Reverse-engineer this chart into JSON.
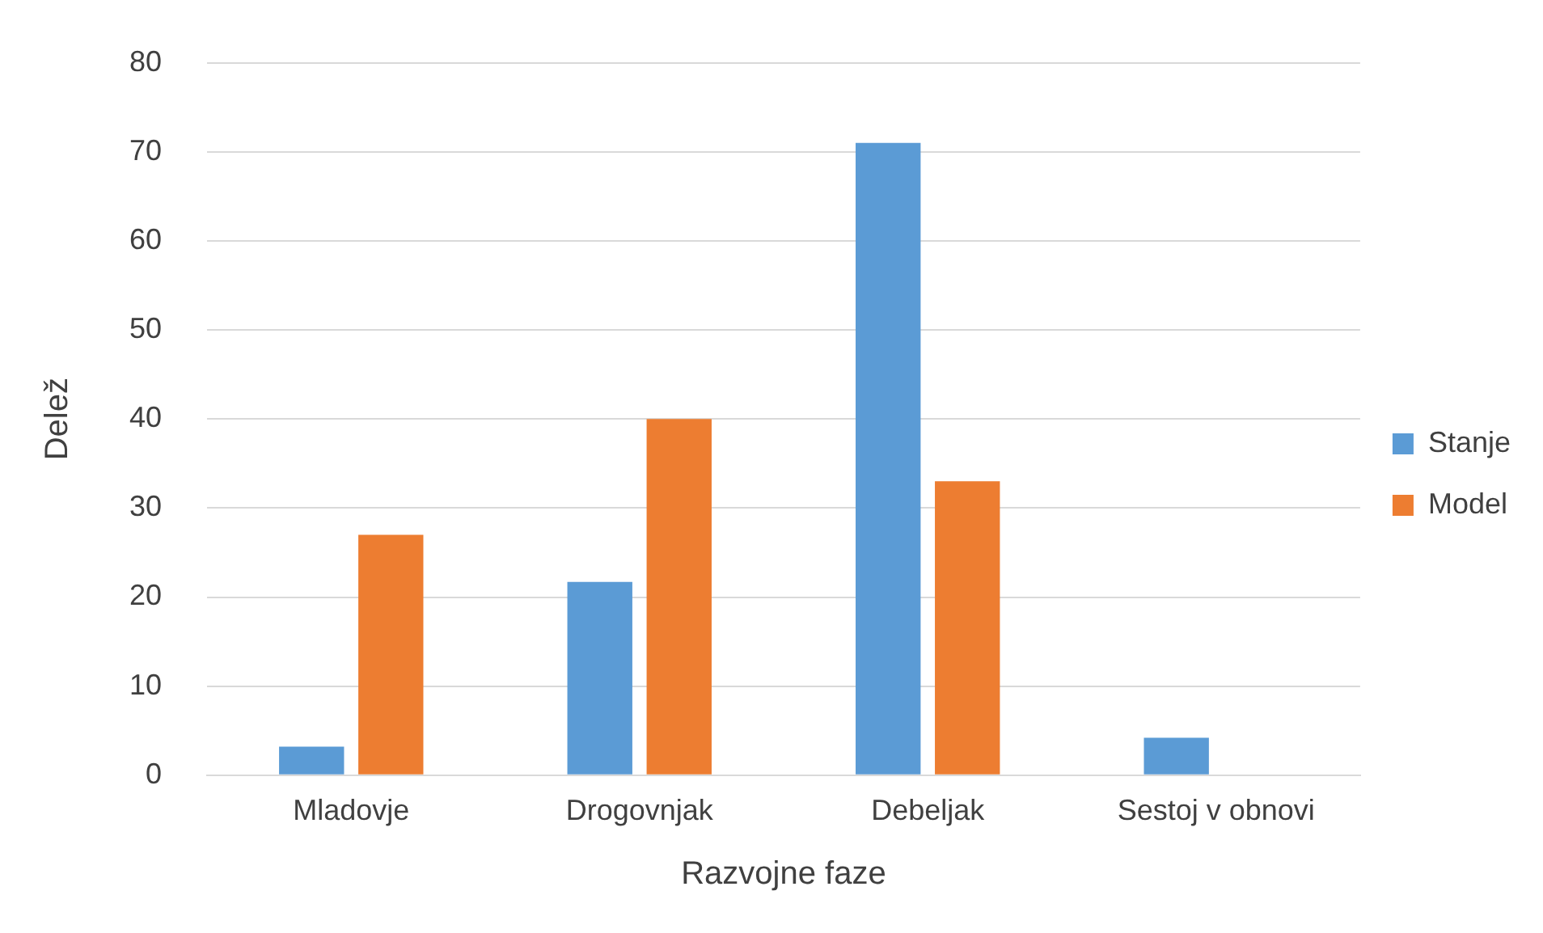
{
  "chart_data": {
    "type": "bar",
    "xlabel": "Razvojne faze",
    "ylabel": "Delež",
    "categories": [
      "Mladovje",
      "Drogovnjak",
      "Debeljak",
      "Sestoj v obnovi"
    ],
    "series": [
      {
        "name": "Stanje",
        "color": "#5b9bd5",
        "values": [
          3.2,
          21.7,
          71,
          4.2
        ]
      },
      {
        "name": "Model",
        "color": "#ed7d31",
        "values": [
          27,
          40,
          33,
          0
        ]
      }
    ],
    "ylim": [
      0,
      80
    ],
    "yticks": [
      0,
      10,
      20,
      30,
      40,
      50,
      60,
      70,
      80
    ],
    "grid": "y",
    "legend": "right"
  }
}
